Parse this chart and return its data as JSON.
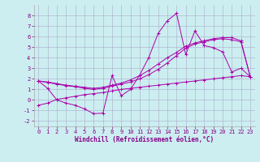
{
  "background_color": "#cceef0",
  "grid_color": "#aaaacc",
  "line_color": "#aa00aa",
  "xlabel": "Windchill (Refroidissement éolien,°C)",
  "ylim": [
    -2.5,
    9.0
  ],
  "xlim": [
    -0.5,
    23.5
  ],
  "yticks": [
    -2,
    -1,
    0,
    1,
    2,
    3,
    4,
    5,
    6,
    7,
    8
  ],
  "xticks": [
    0,
    1,
    2,
    3,
    4,
    5,
    6,
    7,
    8,
    9,
    10,
    11,
    12,
    13,
    14,
    15,
    16,
    17,
    18,
    19,
    20,
    21,
    22,
    23
  ],
  "series": [
    [
      1.8,
      1.1,
      0.0,
      -0.3,
      -0.5,
      -0.85,
      -1.3,
      -1.25,
      2.3,
      0.4,
      1.0,
      2.35,
      4.05,
      6.3,
      7.5,
      8.2,
      4.3,
      6.55,
      5.15,
      4.95,
      4.55,
      2.65,
      3.0,
      2.2
    ],
    [
      1.8,
      1.7,
      1.55,
      1.4,
      1.3,
      1.2,
      1.1,
      1.2,
      1.4,
      1.6,
      1.9,
      2.3,
      2.8,
      3.4,
      4.0,
      4.5,
      5.1,
      5.4,
      5.6,
      5.8,
      5.9,
      5.9,
      5.6,
      2.2
    ],
    [
      1.8,
      1.65,
      1.5,
      1.35,
      1.25,
      1.1,
      1.0,
      1.1,
      1.3,
      1.5,
      1.7,
      2.0,
      2.4,
      2.9,
      3.5,
      4.2,
      4.9,
      5.3,
      5.5,
      5.7,
      5.8,
      5.7,
      5.5,
      2.2
    ],
    [
      -0.5,
      -0.3,
      0.05,
      0.2,
      0.35,
      0.5,
      0.6,
      0.7,
      0.85,
      1.0,
      1.1,
      1.2,
      1.3,
      1.4,
      1.5,
      1.6,
      1.7,
      1.8,
      1.9,
      2.0,
      2.1,
      2.2,
      2.3,
      2.2
    ]
  ],
  "tick_fontsize": 5,
  "xlabel_fontsize": 5.5,
  "tick_color": "#880088",
  "label_color": "#880088"
}
